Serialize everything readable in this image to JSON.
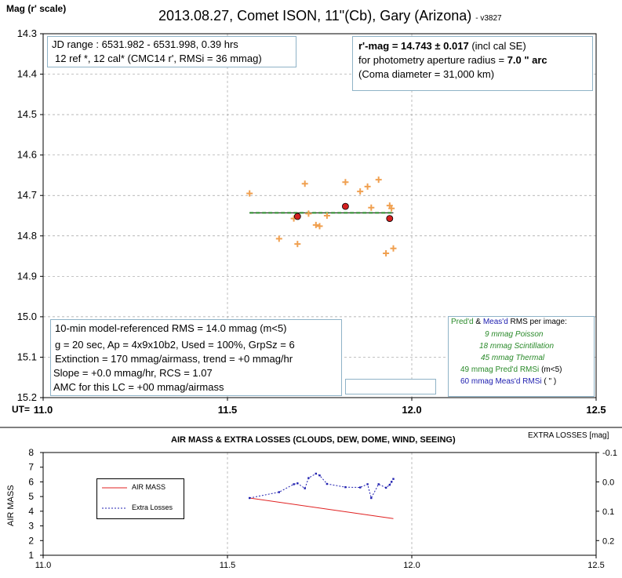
{
  "header": {
    "title": "2013.08.27, Comet ISON, 11\"(Cb), Gary (Arizona)",
    "version": "- v3827",
    "y_axis_label": "Mag (r' scale)"
  },
  "info_box_left": {
    "line1": "JD range : 6531.982 - 6531.998, 0.39 hrs",
    "line2": "12  ref *, 12 cal* (CMC14 r', RMSi = 36 mmag)"
  },
  "info_box_right": {
    "line1_bold": "r'-mag = 14.743 ± 0.017",
    "line1_rest": "(incl cal SE)",
    "line2_pre": "for photometry aperture radius = ",
    "line2_bold": "7.0 \" arc",
    "line3": "(Coma diameter = 31,000 km)"
  },
  "stats_box": {
    "line1": "10-min model-referenced RMS = 14.0 mmag (m<5)",
    "line2": "g = 20 sec, Ap = 4x9x10b2, Used = 100%, GrpSz = 6",
    "line3": "Extinction = 170 mmag/airmass, trend = +0 mmag/hr",
    "line4": "Slope = +0.0 mmag/hr, RCS = 1.07",
    "line5": "AMC for this LC = +00 mmag/airmass"
  },
  "rms_box": {
    "title_pred": "Pred'd",
    "title_amp": " & ",
    "title_meas": "Meas'd",
    "title_rest": " RMS per image:",
    "poisson": "9 mmag Poisson",
    "scint": "18 mmag Scintillation",
    "thermal": "45 mmag Thermal",
    "pred_label": "49 mmag  Pred'd  RMSi",
    "pred_suffix": "(m<5)",
    "meas_label": "60 mmag  Meas'd  RMSi",
    "meas_suffix": "(   \"   )"
  },
  "bottom_header": {
    "title": "AIR MASS & EXTRA  LOSSES (CLOUDS,  DEW, DOME, WIND, SEEING)",
    "right_label": "EXTRA  LOSSES [mag]",
    "y_label": "AIR MASS",
    "legend_airmass": "AIR MASS",
    "legend_extra": "Extra Losses"
  },
  "colors": {
    "points": "#f0a050",
    "means": "#d42020",
    "fit": "#2a8a2a",
    "airmass": "#e02020",
    "extra": "#2020b0",
    "grid": "#a0a0a0",
    "box_border": "#8fb3c7",
    "green_text": "#2a8a2a",
    "blue_text": "#2020b0"
  },
  "chart_data": [
    {
      "type": "scatter",
      "title": "2013.08.27, Comet ISON, 11\"(Cb), Gary (Arizona)",
      "ylabel": "Mag (r' scale)",
      "x_axis_prefix": "UT=",
      "xlim": [
        11.0,
        12.5
      ],
      "ylim": [
        14.3,
        15.2
      ],
      "y_inverted": true,
      "x_ticks": [
        "11.0",
        "11.5",
        "12.0",
        "12.5"
      ],
      "y_ticks": [
        "14.3",
        "14.4",
        "14.5",
        "14.6",
        "14.7",
        "14.8",
        "14.9",
        "15.0",
        "15.1",
        "15.2"
      ],
      "grid": true,
      "series": [
        {
          "kind": "points",
          "x": [
            11.56,
            11.64,
            11.68,
            11.69,
            11.71,
            11.72,
            11.74,
            11.75,
            11.77,
            11.82,
            11.86,
            11.88,
            11.89,
            11.91,
            11.93,
            11.94,
            11.945,
            11.95
          ],
          "y": [
            14.695,
            14.807,
            14.757,
            14.82,
            14.671,
            14.745,
            14.773,
            14.776,
            14.75,
            14.667,
            14.69,
            14.678,
            14.73,
            14.661,
            14.843,
            14.725,
            14.732,
            14.831
          ]
        },
        {
          "kind": "group-means",
          "x": [
            11.69,
            11.82,
            11.94
          ],
          "y": [
            14.752,
            14.727,
            14.757
          ]
        },
        {
          "kind": "fit",
          "x": [
            11.56,
            11.95
          ],
          "y": [
            14.743,
            14.743
          ]
        }
      ]
    },
    {
      "type": "line",
      "title": "AIR MASS & EXTRA  LOSSES (CLOUDS,  DEW, DOME, WIND, SEEING)",
      "ylabel": "AIR MASS",
      "y2label": "EXTRA  LOSSES [mag]",
      "xlim": [
        11.0,
        12.5
      ],
      "ylim": [
        1,
        8
      ],
      "y2lim": [
        0.25,
        -0.1
      ],
      "x_ticks": [
        "11.0",
        "11.5",
        "12.0",
        "12.5"
      ],
      "y_ticks": [
        "1",
        "2",
        "3",
        "4",
        "5",
        "6",
        "7",
        "8"
      ],
      "y2_ticks": [
        "-0.1",
        "0.0",
        "0.1",
        "0.2"
      ],
      "series": [
        {
          "name": "AIR MASS",
          "axis": "left",
          "x": [
            11.56,
            11.95
          ],
          "y": [
            4.9,
            3.5
          ]
        },
        {
          "name": "Extra Losses",
          "axis": "right",
          "x": [
            11.56,
            11.64,
            11.68,
            11.69,
            11.71,
            11.72,
            11.74,
            11.75,
            11.77,
            11.82,
            11.86,
            11.88,
            11.89,
            11.91,
            11.93,
            11.94,
            11.945,
            11.95
          ],
          "y": [
            0.055,
            0.035,
            0.008,
            0.005,
            0.022,
            -0.013,
            -0.028,
            -0.022,
            0.007,
            0.018,
            0.019,
            0.008,
            0.055,
            0.008,
            0.02,
            0.01,
            0.0,
            -0.01
          ]
        }
      ]
    }
  ]
}
